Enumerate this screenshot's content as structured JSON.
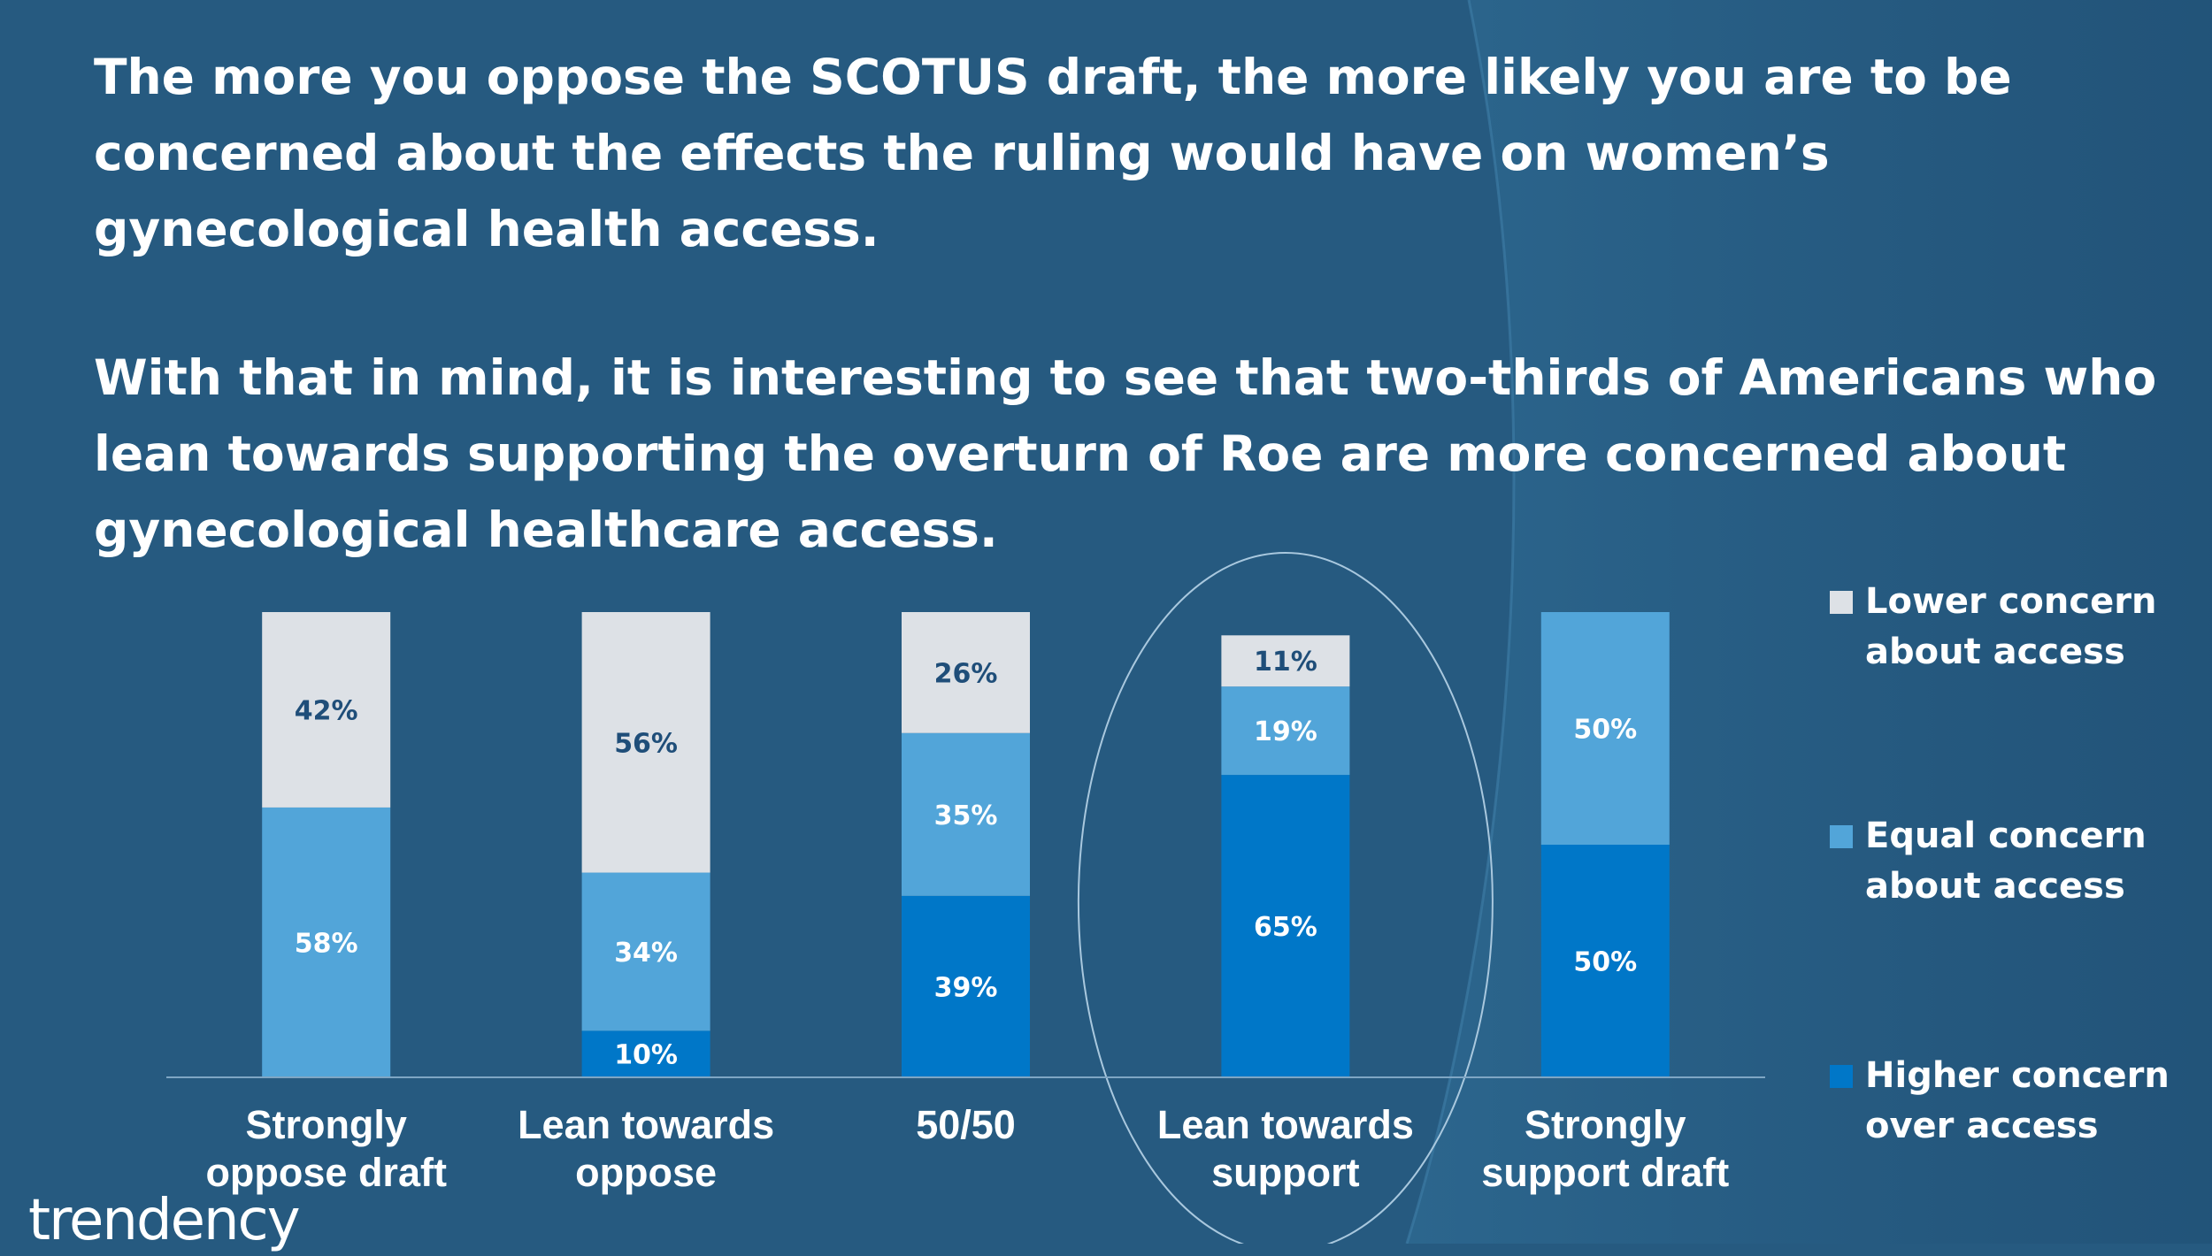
{
  "headline": {
    "paragraph1": "The more you oppose the SCOTUS draft, the more likely you are to be concerned about the effects the ruling would have on women’s gynecological health access.",
    "paragraph2": "With that in mind, it is interesting to see that two-thirds of Americans who lean towards supporting the overturn of Roe are more concerned about gynecological healthcare access."
  },
  "colors": {
    "background": "#265a80",
    "lower": "#dde1e6",
    "equal": "#52a5d9",
    "higher": "#0077c8",
    "label_dark": "#1f4e79",
    "label_light": "#ffffff"
  },
  "chart_data": {
    "type": "bar",
    "stacked": true,
    "percent": true,
    "title": "",
    "xlabel": "",
    "ylabel": "",
    "ylim": [
      0,
      100
    ],
    "grid": false,
    "categories": [
      "Strongly oppose draft",
      "Lean towards oppose",
      "50/50",
      "Lean towards support",
      "Strongly support draft"
    ],
    "series": [
      {
        "name": "Higher concern over access",
        "values": [
          0,
          10,
          39,
          65,
          50
        ]
      },
      {
        "name": "Equal concern about access",
        "values": [
          58,
          34,
          35,
          19,
          50
        ]
      },
      {
        "name": "Lower concern about access",
        "values": [
          42,
          56,
          26,
          11,
          0
        ]
      }
    ],
    "highlighted_category": "Lean towards support",
    "legend_position": "right"
  },
  "legend": [
    {
      "label": "Lower concern about access",
      "series": "Lower concern about access"
    },
    {
      "label": "Equal concern about access",
      "series": "Equal concern about access"
    },
    {
      "label": "Higher concern over access",
      "series": "Higher concern over access"
    }
  ],
  "logo": {
    "text": "trendency"
  }
}
